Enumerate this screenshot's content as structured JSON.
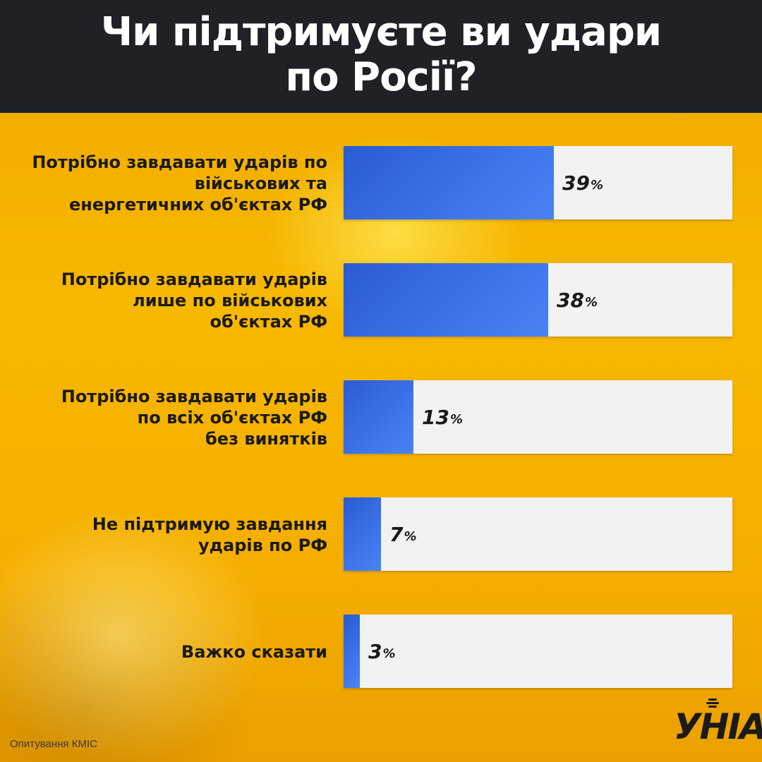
{
  "title": "Чи підтримуєте ви удари\nпо Росії?",
  "chart_data": {
    "type": "bar",
    "orientation": "horizontal",
    "categories": [
      "Потрібно завдавати ударів по\nвійськових та\nенергетичних об'єктах РФ",
      "Потрібно завдавати ударів\nлише по військових\nоб'єктах РФ",
      "Потрібно завдавати ударів\nпо всіх об'єктах РФ\nбез винятків",
      "Не підтримую завдання\nударів по РФ",
      "Важко сказати"
    ],
    "values": [
      39,
      38,
      13,
      7,
      3
    ],
    "value_suffix": "%",
    "xlim": [
      0,
      100
    ],
    "bar_color": "#3d74ea",
    "track_color": "#f2f2f2",
    "grid": false,
    "legend": "none"
  },
  "source": "Опитування КМІС",
  "logo": {
    "text": "УНІАН",
    "icon": "microphone-icon"
  },
  "colors": {
    "header": "#1f2127",
    "background": "#f4b400",
    "text": "#1a1a1a"
  }
}
